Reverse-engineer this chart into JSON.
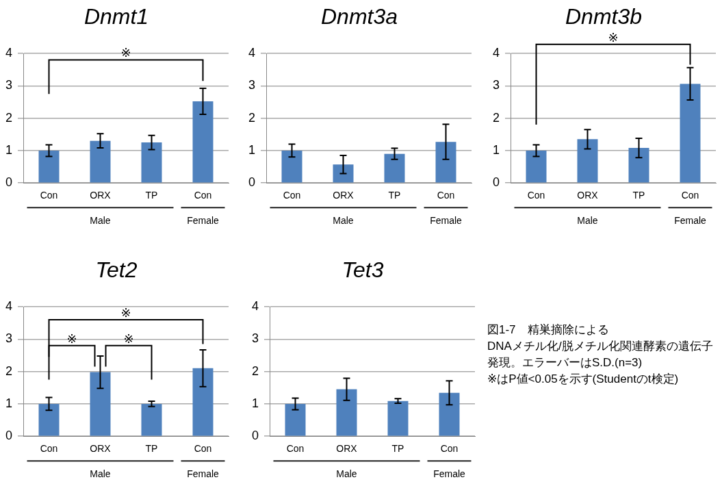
{
  "chart_data": [
    {
      "type": "bar",
      "title": "Dnmt1",
      "categories": [
        "Con",
        "ORX",
        "TP",
        "Con"
      ],
      "values": [
        1.0,
        1.3,
        1.25,
        2.52
      ],
      "errors": [
        0.18,
        0.22,
        0.22,
        0.4
      ],
      "color": "#4f81bd",
      "ylim": [
        0,
        4
      ],
      "yticks": [
        0,
        1,
        2,
        3,
        4
      ],
      "grid": "y",
      "annotations": [
        "※",
        "Male",
        "Female"
      ]
    },
    {
      "type": "bar",
      "title": "Dnmt3a",
      "categories": [
        "Con",
        "ORX",
        "TP",
        "Con"
      ],
      "values": [
        1.0,
        0.57,
        0.9,
        1.27
      ],
      "errors": [
        0.2,
        0.28,
        0.17,
        0.54
      ],
      "color": "#4f81bd",
      "ylim": [
        0,
        4
      ],
      "yticks": [
        0,
        1,
        2,
        3,
        4
      ],
      "grid": "y",
      "annotations": [
        "Male",
        "Female"
      ]
    },
    {
      "type": "bar",
      "title": "Dnmt3b",
      "categories": [
        "Con",
        "ORX",
        "TP",
        "Con"
      ],
      "values": [
        1.0,
        1.35,
        1.08,
        3.06
      ],
      "errors": [
        0.18,
        0.3,
        0.3,
        0.5
      ],
      "color": "#4f81bd",
      "ylim": [
        0,
        4
      ],
      "yticks": [
        0,
        1,
        2,
        3,
        4
      ],
      "grid": "y",
      "annotations": [
        "※",
        "Male",
        "Female"
      ]
    },
    {
      "type": "bar",
      "title": "Tet2",
      "categories": [
        "Con",
        "ORX",
        "TP",
        "Con"
      ],
      "values": [
        1.0,
        1.98,
        1.0,
        2.1
      ],
      "errors": [
        0.2,
        0.5,
        0.08,
        0.57
      ],
      "color": "#4f81bd",
      "ylim": [
        0,
        4
      ],
      "yticks": [
        0,
        1,
        2,
        3,
        4
      ],
      "grid": "y",
      "annotations": [
        "※",
        "※",
        "※",
        "Male",
        "Female"
      ]
    },
    {
      "type": "bar",
      "title": "Tet3",
      "categories": [
        "Con",
        "ORX",
        "TP",
        "Con"
      ],
      "values": [
        1.0,
        1.45,
        1.09,
        1.34
      ],
      "errors": [
        0.18,
        0.34,
        0.07,
        0.37
      ],
      "color": "#4f81bd",
      "ylim": [
        0,
        4
      ],
      "yticks": [
        0,
        1,
        2,
        3,
        4
      ],
      "grid": "y",
      "annotations": [
        "Male",
        "Female"
      ]
    },
    {
      "type": "other",
      "annotations": [
        "図1-7　精巣摘除による",
        "DNAメチル化/脱メチル化関連酵素の遺伝子発現。エラーバーはS.D.(n=3)",
        "※はP値<0.05を示す(Studentのt検定)"
      ]
    }
  ]
}
